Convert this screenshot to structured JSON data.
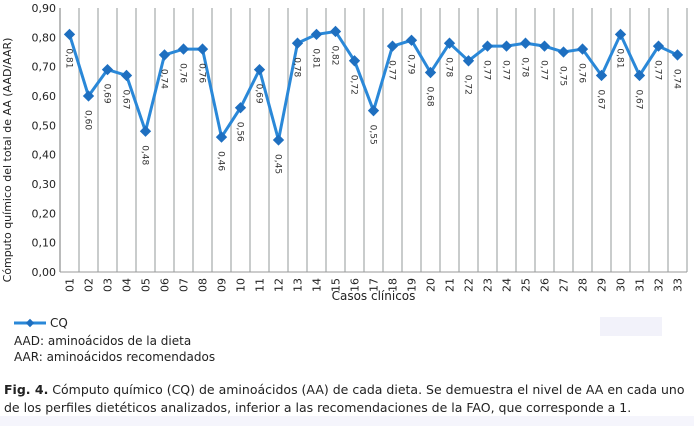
{
  "chart_data": {
    "type": "line",
    "title": "",
    "xlabel": "Casos clínicos",
    "ylabel": "Cómputo químico del total de AA (AAD/AAR)",
    "ylim": [
      0,
      0.9
    ],
    "yticks": [
      "0,00",
      "0,10",
      "0,20",
      "0,30",
      "0,40",
      "0,50",
      "0,60",
      "0,70",
      "0,80",
      "0,90"
    ],
    "categories": [
      "01",
      "02",
      "03",
      "04",
      "05",
      "06",
      "07",
      "08",
      "09",
      "10",
      "11",
      "12",
      "13",
      "14",
      "15",
      "16",
      "17",
      "18",
      "19",
      "20",
      "21",
      "22",
      "23",
      "24",
      "25",
      "26",
      "27",
      "28",
      "29",
      "30",
      "31",
      "32",
      "33"
    ],
    "series": [
      {
        "name": "CQ",
        "color": "#2a88d8",
        "values": [
          0.81,
          0.6,
          0.69,
          0.67,
          0.48,
          0.74,
          0.76,
          0.76,
          0.46,
          0.56,
          0.69,
          0.45,
          0.78,
          0.81,
          0.82,
          0.72,
          0.55,
          0.77,
          0.79,
          0.68,
          0.78,
          0.72,
          0.77,
          0.77,
          0.78,
          0.77,
          0.75,
          0.76,
          0.67,
          0.81,
          0.67,
          0.77,
          0.74
        ],
        "labels": [
          "0,81",
          "0,60",
          "0,69",
          "0,67",
          "0,48",
          "0,74",
          "0,76",
          "0,76",
          "0,46",
          "0,56",
          "0,69",
          "0,45",
          "0,78",
          "0,81",
          "0,82",
          "0,72",
          "0,55",
          "0,77",
          "0,79",
          "0,68",
          "0,78",
          "0,72",
          "0,77",
          "0,77",
          "0,78",
          "0,77",
          "0,75",
          "0,76",
          "0,67",
          "0,81",
          "0,67",
          "0,77",
          "0,74"
        ]
      }
    ],
    "grid": "vertical",
    "legend": "bottom-left"
  },
  "notes": [
    "AAD: aminoácidos de la dieta",
    "AAR: aminoácidos recomendados"
  ],
  "caption": {
    "label": "Fig. 4.",
    "text": " Cómputo químico (CQ) de aminoácidos (AA) de cada dieta. Se demuestra el nivel de AA en cada uno de los perfiles dietéticos analizados, inferior a las recomendaciones de la FAO, que corresponde a 1."
  }
}
